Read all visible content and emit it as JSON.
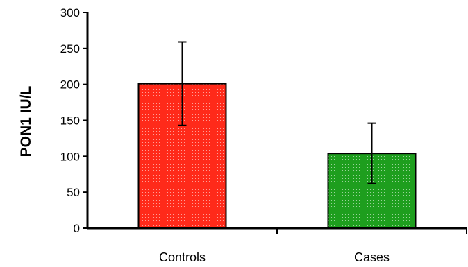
{
  "chart_data": {
    "type": "bar",
    "categories": [
      "Controls",
      "Cases"
    ],
    "values": [
      201,
      104
    ],
    "error": [
      58,
      42
    ],
    "ylabel": "PON1 IU/L",
    "xlabel": "",
    "ylim": [
      0,
      300
    ],
    "yticks": [
      "0",
      "50",
      "100",
      "150",
      "200",
      "250",
      "300"
    ],
    "grid": false,
    "legend": "none",
    "colors": [
      "#ff2a1a",
      "#1e9e1e"
    ],
    "bar_pattern": "dotted"
  }
}
